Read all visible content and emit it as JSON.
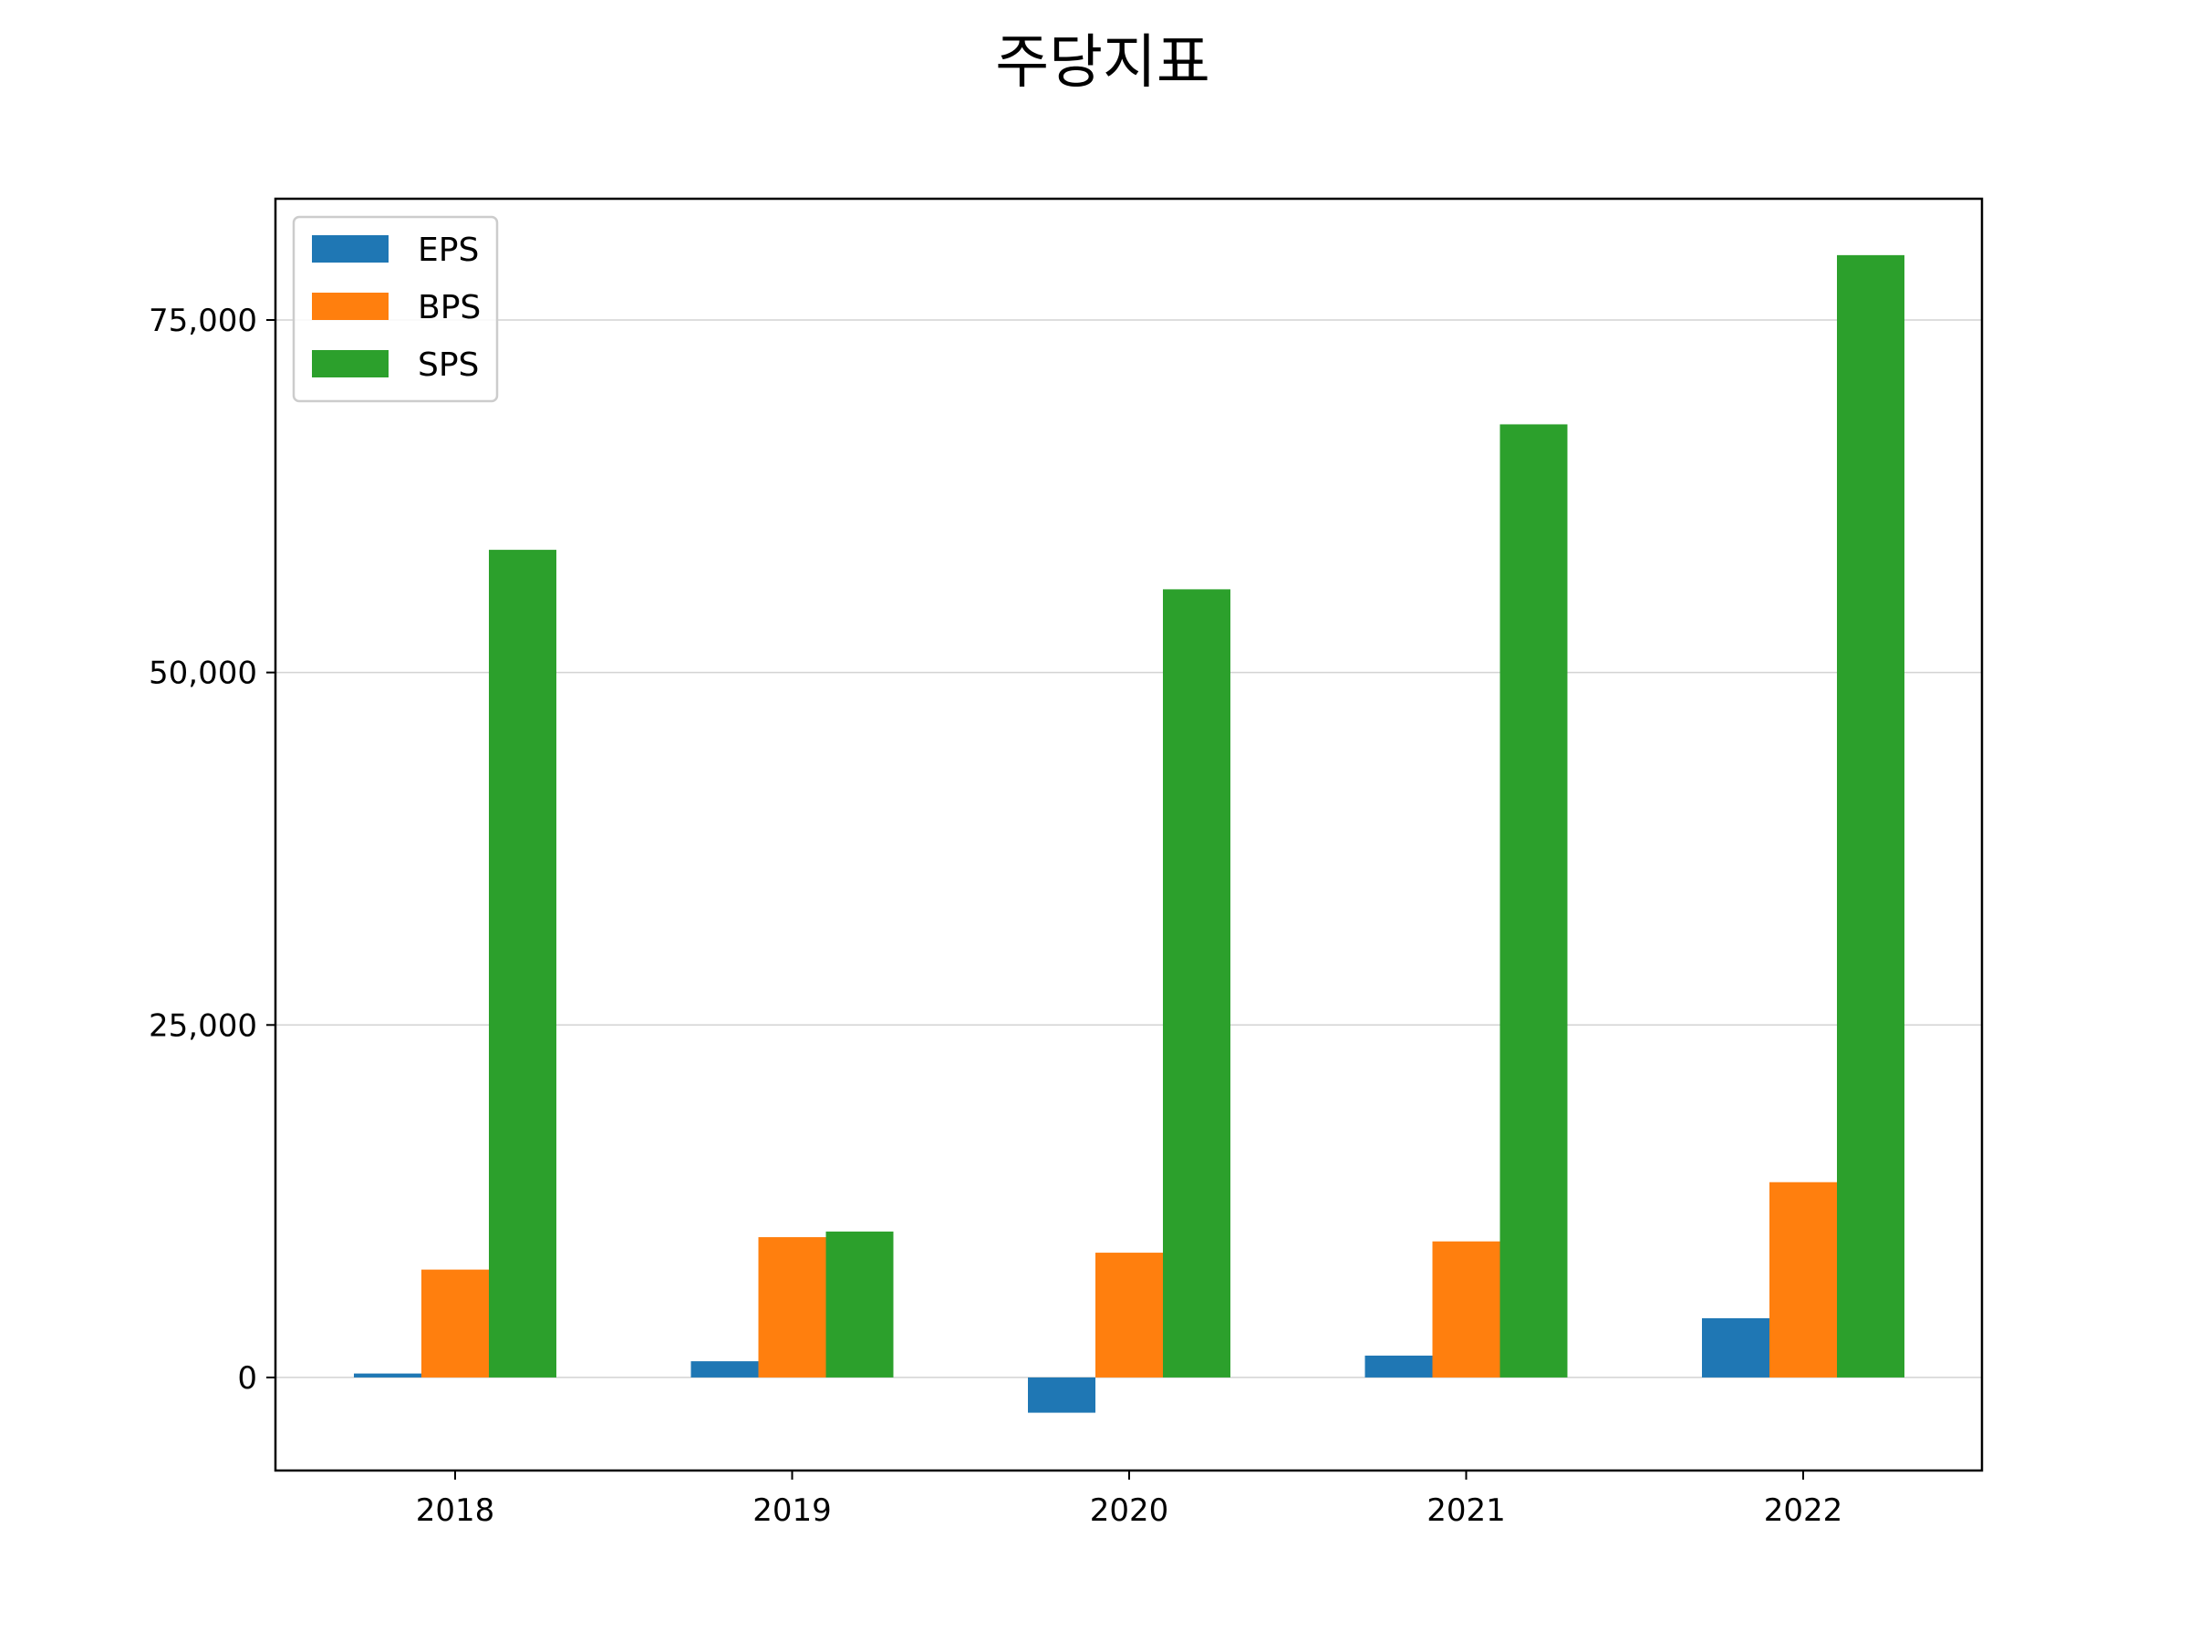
{
  "chart_data": {
    "type": "bar",
    "title": "주당지표",
    "xlabel": "",
    "ylabel": "",
    "categories": [
      "2018",
      "2019",
      "2020",
      "2021",
      "2022"
    ],
    "series": [
      {
        "name": "EPS",
        "color": "#1f77b4",
        "values": [
          280,
          1150,
          -2500,
          1550,
          4200
        ]
      },
      {
        "name": "BPS",
        "color": "#ff7f0e",
        "values": [
          7650,
          9950,
          8850,
          9650,
          13850
        ]
      },
      {
        "name": "SPS",
        "color": "#2ca02c",
        "values": [
          58700,
          10350,
          55900,
          67600,
          79600
        ]
      }
    ],
    "ylim": [
      -6600,
      83600
    ],
    "yticks": [
      0,
      25000,
      50000,
      75000
    ],
    "ytick_labels": [
      "0",
      "25,000",
      "50,000",
      "75,000"
    ],
    "grid": "y",
    "legend": "top-left"
  }
}
